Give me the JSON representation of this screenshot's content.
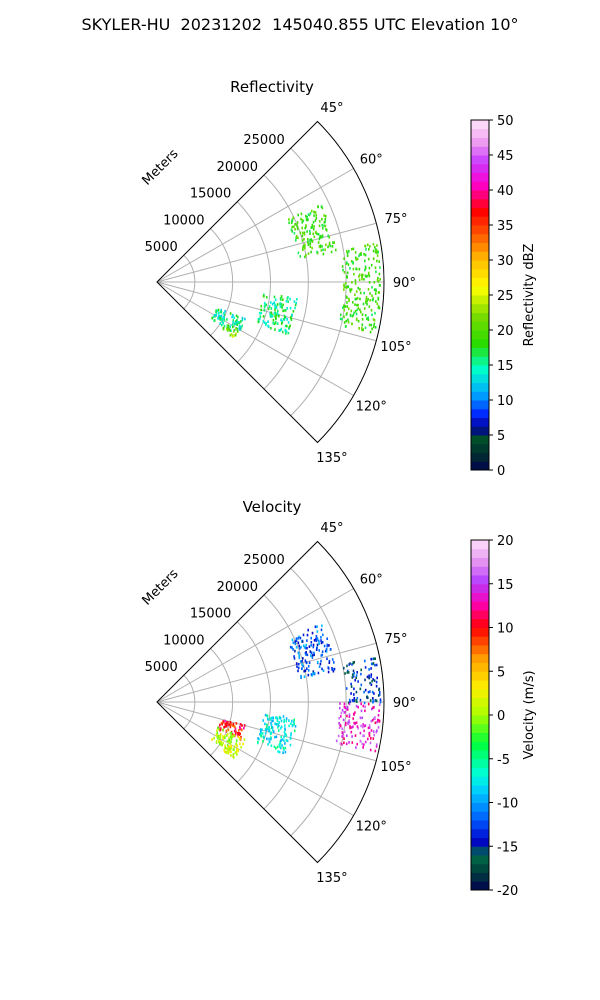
{
  "figure_title": "SKYLER-HU  20231202  145040.855 UTC Elevation 10°",
  "chart_data": [
    {
      "type": "polar-sector-heatmap",
      "title": "Reflectivity",
      "radial_label": "Meters",
      "radial_ticks": [
        5000,
        10000,
        15000,
        20000,
        25000
      ],
      "rlim": [
        0,
        30000
      ],
      "theta_ticks": [
        "45°",
        "60°",
        "75°",
        "90°",
        "105°",
        "120°",
        "135°"
      ],
      "theta_range_deg": [
        45,
        135
      ],
      "grid": true,
      "colorbar": {
        "label": "Reflectivity dBZ",
        "min": 0,
        "max": 50,
        "ticks": [
          0,
          5,
          10,
          15,
          20,
          25,
          30,
          35,
          40,
          45,
          50
        ]
      },
      "echo_regions": [
        {
          "az_range": [
            64,
            80
          ],
          "r_range": [
            19000,
            24000
          ],
          "value": 19
        },
        {
          "az_range": [
            79,
            103
          ],
          "r_range": [
            24500,
            29500
          ],
          "value": 19
        },
        {
          "az_range": [
            96,
            112
          ],
          "r_range": [
            14000,
            18500
          ],
          "value": 16
        },
        {
          "az_range": [
            112,
            124
          ],
          "r_range": [
            8500,
            12500
          ],
          "value": 15
        },
        {
          "az_range": [
            120,
            126
          ],
          "r_range": [
            10500,
            12500
          ],
          "value": 22
        }
      ]
    },
    {
      "type": "polar-sector-heatmap",
      "title": "Velocity",
      "radial_label": "Meters",
      "radial_ticks": [
        5000,
        10000,
        15000,
        20000,
        25000
      ],
      "rlim": [
        0,
        30000
      ],
      "theta_ticks": [
        "45°",
        "60°",
        "75°",
        "90°",
        "105°",
        "120°",
        "135°"
      ],
      "theta_range_deg": [
        45,
        135
      ],
      "grid": true,
      "colorbar": {
        "label": "Velocity (m/s)",
        "min": -20,
        "max": 20,
        "ticks": [
          -20,
          -15,
          -10,
          -5,
          0,
          5,
          10,
          15,
          20
        ]
      },
      "echo_regions": [
        {
          "az_range": [
            64,
            80
          ],
          "r_range": [
            19000,
            24000
          ],
          "value": -12
        },
        {
          "az_range": [
            78,
            90
          ],
          "r_range": [
            25000,
            29500
          ],
          "value": -14
        },
        {
          "az_range": [
            90,
            103
          ],
          "r_range": [
            24000,
            29500
          ],
          "value": 14
        },
        {
          "az_range": [
            96,
            112
          ],
          "r_range": [
            14000,
            18500
          ],
          "value": -7
        },
        {
          "az_range": [
            104,
            114
          ],
          "r_range": [
            8500,
            12000
          ],
          "value": 10
        },
        {
          "az_range": [
            112,
            124
          ],
          "r_range": [
            8500,
            12500
          ],
          "value": 1
        },
        {
          "az_range": [
            120,
            126
          ],
          "r_range": [
            10500,
            12500
          ],
          "value": 2
        }
      ]
    }
  ]
}
